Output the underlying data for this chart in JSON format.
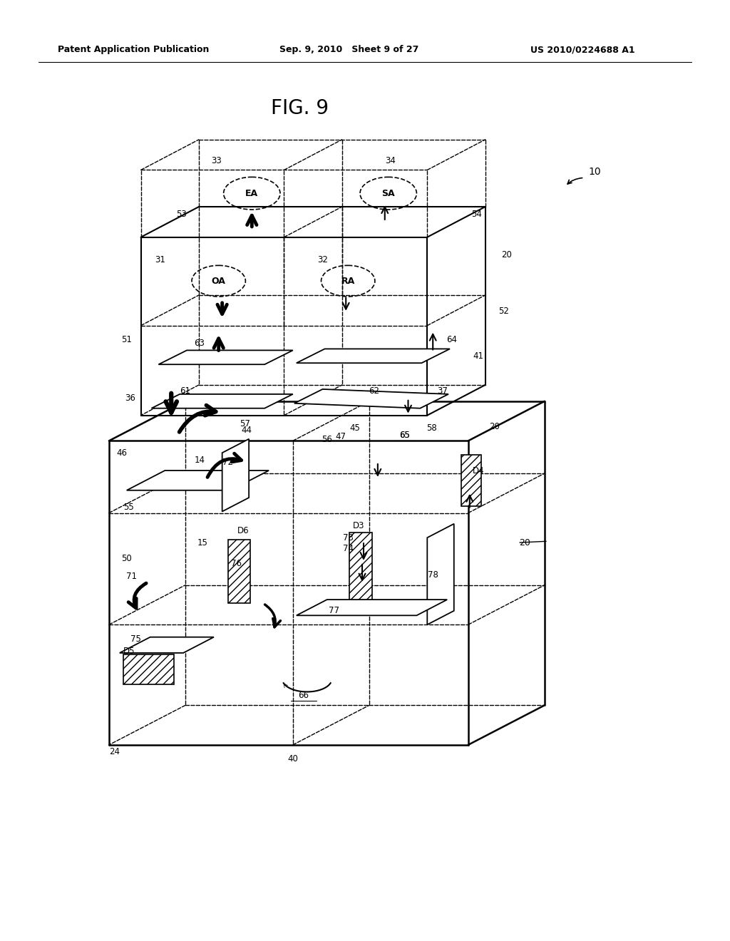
{
  "header_left": "Patent Application Publication",
  "header_center": "Sep. 9, 2010   Sheet 9 of 27",
  "header_right": "US 2010/0224688 A1",
  "fig_title": "FIG. 9",
  "bg_color": "#ffffff"
}
